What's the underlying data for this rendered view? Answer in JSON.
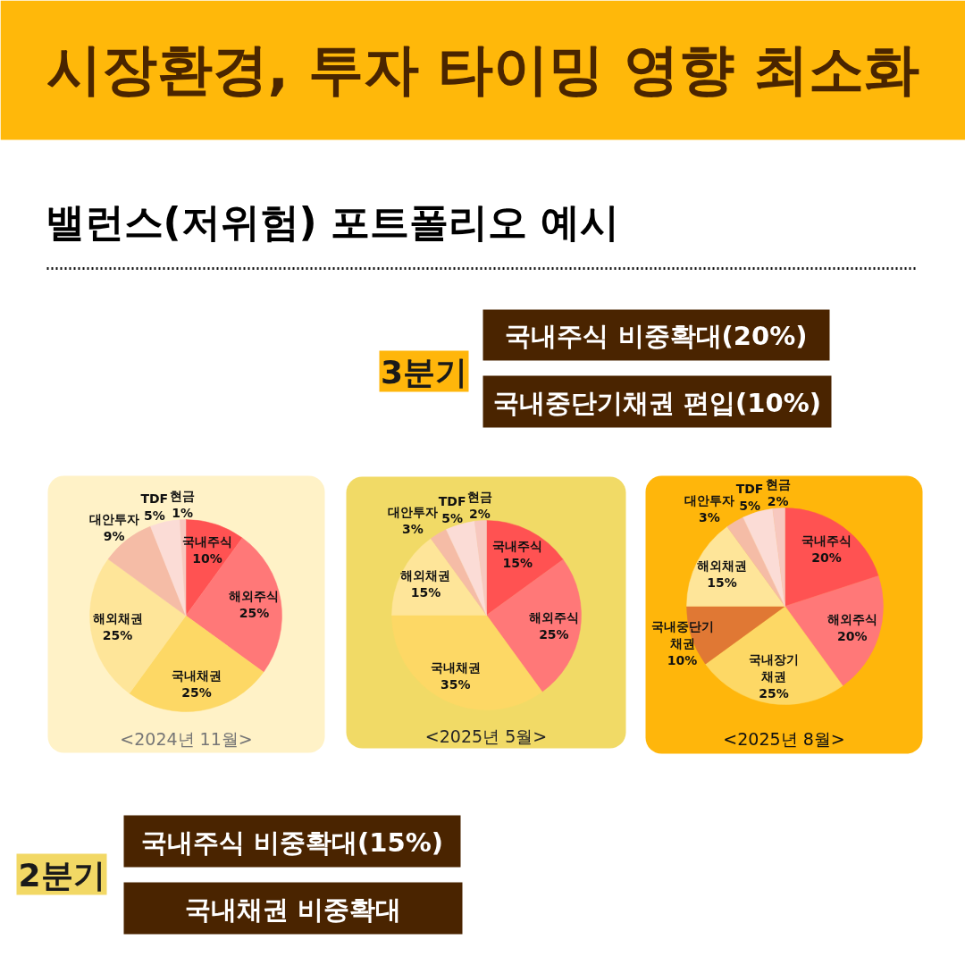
{
  "chart_data": [
    {
      "type": "pie",
      "title": "시장환경, 투자 타이밍 영향 최소화",
      "subtitle": "밸런스(저위험) 포트폴리오 예시",
      "xlabel": "<2024년 11월>",
      "categories": [
        "국내주식",
        "해외주식",
        "국내채권",
        "해외채권",
        "대안투자",
        "TDF",
        "현금"
      ],
      "values": [
        10,
        25,
        25,
        25,
        9,
        5,
        1
      ],
      "value_labels": [
        "10%",
        "25%",
        "25%",
        "25%",
        "9%",
        "5%",
        "1%"
      ],
      "colors": [
        "#ff5252",
        "#ff7878",
        "#fdd865",
        "#fee599",
        "#f5bca6",
        "#fbdcd6",
        "#f7c8bf"
      ]
    },
    {
      "type": "pie",
      "xlabel": "<2025년 5월>",
      "categories": [
        "국내주식",
        "해외주식",
        "국내채권",
        "해외채권",
        "대안투자",
        "TDF",
        "현금"
      ],
      "values": [
        15,
        25,
        35,
        15,
        3,
        5,
        2
      ],
      "value_labels": [
        "15%",
        "25%",
        "35%",
        "15%",
        "3%",
        "5%",
        "2%"
      ],
      "colors": [
        "#ff5252",
        "#ff7878",
        "#fdd865",
        "#fee599",
        "#f5bca6",
        "#fbdcd6",
        "#f7c8bf"
      ],
      "annotations": [
        "2분기",
        "국내주식 비중확대(15%)",
        "국내채권 비중확대"
      ]
    },
    {
      "type": "pie",
      "xlabel": "<2025년 8월>",
      "categories": [
        "국내주식",
        "해외주식",
        "국내장기채권",
        "국내중단기채권",
        "해외채권",
        "대안투자",
        "TDF",
        "현금"
      ],
      "values": [
        20,
        20,
        25,
        10,
        15,
        3,
        5,
        2
      ],
      "value_labels": [
        "20%",
        "20%",
        "25%",
        "10%",
        "15%",
        "3%",
        "5%",
        "2%"
      ],
      "colors": [
        "#ff5252",
        "#ff7878",
        "#fdd865",
        "#e07834",
        "#fee599",
        "#f5bca6",
        "#fbdcd6",
        "#f7c8bf"
      ],
      "annotations": [
        "3분기",
        "국내주식 비중확대(20%)",
        "국내중단기채권 편입(10%)"
      ]
    }
  ]
}
